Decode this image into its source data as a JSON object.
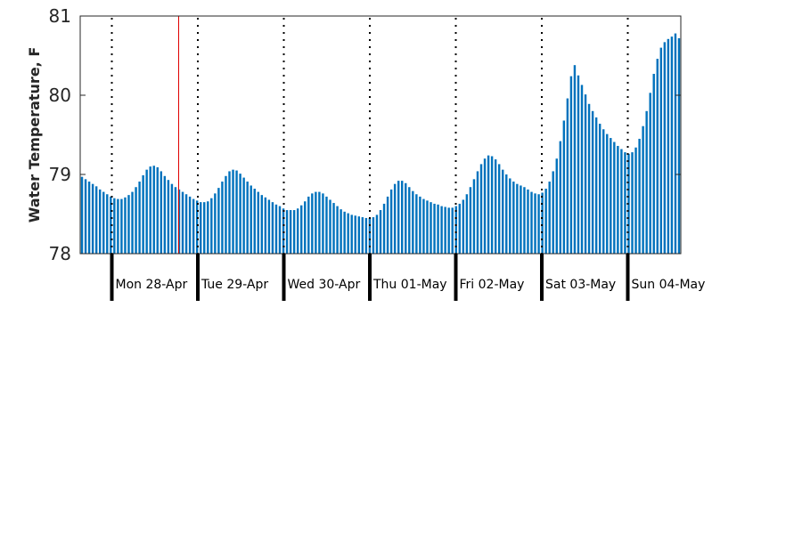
{
  "chart_data": {
    "type": "bar",
    "title": "",
    "xlabel": "",
    "ylabel": "Water Temperature, F",
    "ylim": [
      78,
      81
    ],
    "yticks": [
      78,
      79,
      80,
      81
    ],
    "grid": false,
    "legend": "none",
    "bar_color": "#0072bd",
    "marker_line_color": "#e00000",
    "day_divider_style": "dotted",
    "day_labels": [
      "Mon 28-Apr",
      "Tue 29-Apr",
      "Wed 30-Apr",
      "Thu 01-May",
      "Fri 02-May",
      "Sat 03-May",
      "Sun 04-May"
    ],
    "series": [
      {
        "values": [
          78.97,
          78.94,
          78.91,
          78.88,
          78.85,
          78.81,
          78.78,
          78.75,
          78.72,
          78.7,
          78.69,
          78.69,
          78.71,
          78.74,
          78.78,
          78.84,
          78.91,
          78.99,
          79.06,
          79.1,
          79.11,
          79.09,
          79.04,
          78.98,
          78.93,
          78.88,
          78.84,
          78.81,
          78.78,
          78.75,
          78.72,
          78.69,
          78.67,
          78.65,
          78.65,
          78.66,
          78.7,
          78.76,
          78.83,
          78.91,
          78.98,
          79.04,
          79.06,
          79.05,
          79.01,
          78.96,
          78.91,
          78.86,
          78.82,
          78.78,
          78.74,
          78.71,
          78.68,
          78.65,
          78.62,
          78.6,
          78.57,
          78.55,
          78.55,
          78.55,
          78.57,
          78.61,
          78.66,
          78.72,
          78.76,
          78.78,
          78.78,
          78.76,
          78.72,
          78.68,
          78.64,
          78.6,
          78.56,
          78.53,
          78.51,
          78.49,
          78.48,
          78.47,
          78.46,
          78.45,
          78.45,
          78.46,
          78.49,
          78.55,
          78.63,
          78.72,
          78.81,
          78.88,
          78.92,
          78.92,
          78.89,
          78.84,
          78.79,
          78.75,
          78.72,
          78.69,
          78.67,
          78.65,
          78.63,
          78.62,
          78.6,
          78.59,
          78.58,
          78.58,
          78.6,
          78.63,
          78.68,
          78.75,
          78.84,
          78.94,
          79.04,
          79.13,
          79.2,
          79.24,
          79.23,
          79.19,
          79.13,
          79.06,
          79.0,
          78.95,
          78.91,
          78.88,
          78.86,
          78.84,
          78.81,
          78.78,
          78.76,
          78.75,
          78.77,
          78.82,
          78.91,
          79.04,
          79.2,
          79.42,
          79.68,
          79.96,
          80.24,
          80.38,
          80.25,
          80.13,
          80.01,
          79.89,
          79.8,
          79.72,
          79.64,
          79.57,
          79.51,
          79.46,
          79.41,
          79.36,
          79.32,
          79.28,
          79.26,
          79.28,
          79.34,
          79.45,
          79.61,
          79.8,
          80.03,
          80.27,
          80.46,
          80.6,
          80.67,
          80.71,
          80.74,
          80.78,
          80.72
        ]
      }
    ]
  }
}
